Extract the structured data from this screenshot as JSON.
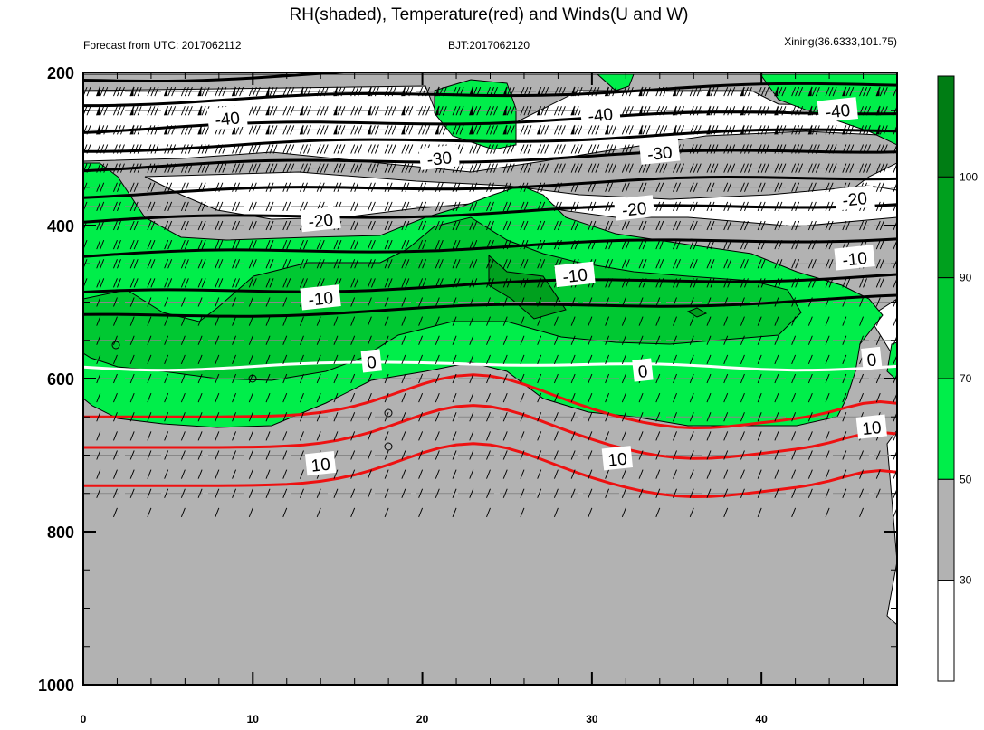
{
  "title": "RH(shaded), Temperature(red) and Winds(U and W)",
  "left_label": "Forecast from UTC: 2017062112",
  "center_label": "BJT:2017062120",
  "right_label": "Xining(36.6333,101.75)",
  "chart_data": {
    "type": "contour",
    "x_range": [
      0,
      48
    ],
    "y_range": [
      200,
      1000
    ],
    "y_axis_inverted": true,
    "x_ticks": [
      "0",
      "10",
      "20",
      "30",
      "40"
    ],
    "y_ticks": [
      "200",
      "400",
      "600",
      "800",
      "1000"
    ],
    "colorbar": {
      "levels": [
        "30",
        "50",
        "70",
        "90",
        "100"
      ],
      "colors": [
        "#ffffff",
        "#b2b2b2",
        "#00ee4a",
        "#00c832",
        "#00a01e",
        "#007d14"
      ]
    },
    "temperature_contours": [
      {
        "level": -40,
        "color": "#000000",
        "p": [
          210,
          240,
          275
        ],
        "labels": [
          {
            "t": "-40",
            "x": 8.5,
            "p": 260
          },
          {
            "t": "-40",
            "x": 30.5,
            "p": 255
          },
          {
            "t": "-40",
            "x": 44.5,
            "p": 250
          }
        ]
      },
      {
        "level": -30,
        "color": "#000000",
        "p": [
          300,
          325
        ],
        "labels": [
          {
            "t": "-30",
            "x": 21,
            "p": 312
          },
          {
            "t": "-30",
            "x": 34,
            "p": 305
          }
        ]
      },
      {
        "level": -20,
        "color": "#000000",
        "p": [
          360,
          395
        ],
        "labels": [
          {
            "t": "-20",
            "x": 14,
            "p": 393
          },
          {
            "t": "-20",
            "x": 32.5,
            "p": 378
          },
          {
            "t": "-20",
            "x": 45.5,
            "p": 365
          }
        ]
      },
      {
        "level": -10,
        "color": "#000000",
        "p": [
          440,
          490,
          520
        ],
        "labels": [
          {
            "t": "-10",
            "x": 14,
            "p": 495
          },
          {
            "t": "-10",
            "x": 29,
            "p": 465
          },
          {
            "t": "-10",
            "x": 45.5,
            "p": 443
          }
        ]
      },
      {
        "level": 0,
        "color": "#ffffff",
        "p": [
          585
        ],
        "labels": [
          {
            "t": "0",
            "x": 17,
            "p": 578
          },
          {
            "t": "0",
            "x": 33,
            "p": 590
          },
          {
            "t": "0",
            "x": 46.5,
            "p": 575
          }
        ]
      },
      {
        "level": 10,
        "color": "#ee1111",
        "p": [
          650,
          690,
          740
        ],
        "labels": [
          {
            "t": "10",
            "x": 14,
            "p": 712
          },
          {
            "t": "10",
            "x": 31.5,
            "p": 705
          },
          {
            "t": "10",
            "x": 46.5,
            "p": 664
          }
        ]
      }
    ]
  }
}
